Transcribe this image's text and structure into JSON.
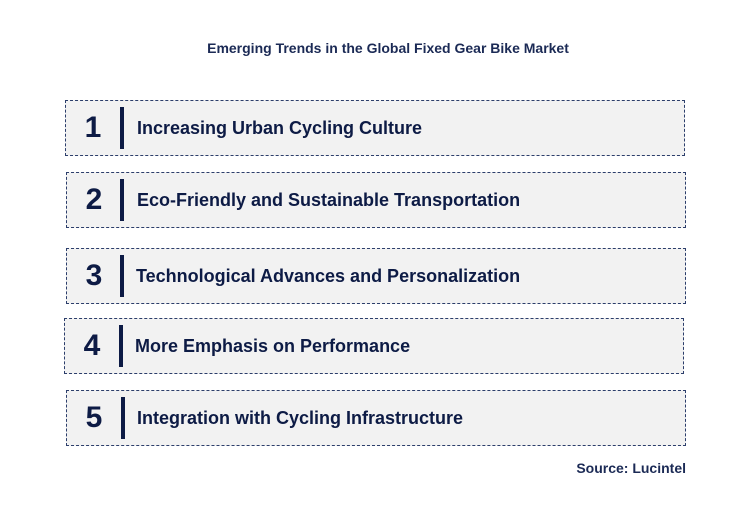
{
  "title": "Emerging Trends in the Global Fixed Gear Bike Market",
  "trends": [
    {
      "number": "1",
      "label": "Increasing Urban Cycling Culture"
    },
    {
      "number": "2",
      "label": "Eco-Friendly and Sustainable Transportation"
    },
    {
      "number": "3",
      "label": "Technological Advances and Personalization"
    },
    {
      "number": "4",
      "label": "More Emphasis on Performance"
    },
    {
      "number": "5",
      "label": "Integration with Cycling Infrastructure"
    }
  ],
  "source": "Source: Lucintel",
  "colors": {
    "text": "#0d1b45",
    "box_fill": "#f2f2f2",
    "box_border": "#2c3e6b"
  }
}
